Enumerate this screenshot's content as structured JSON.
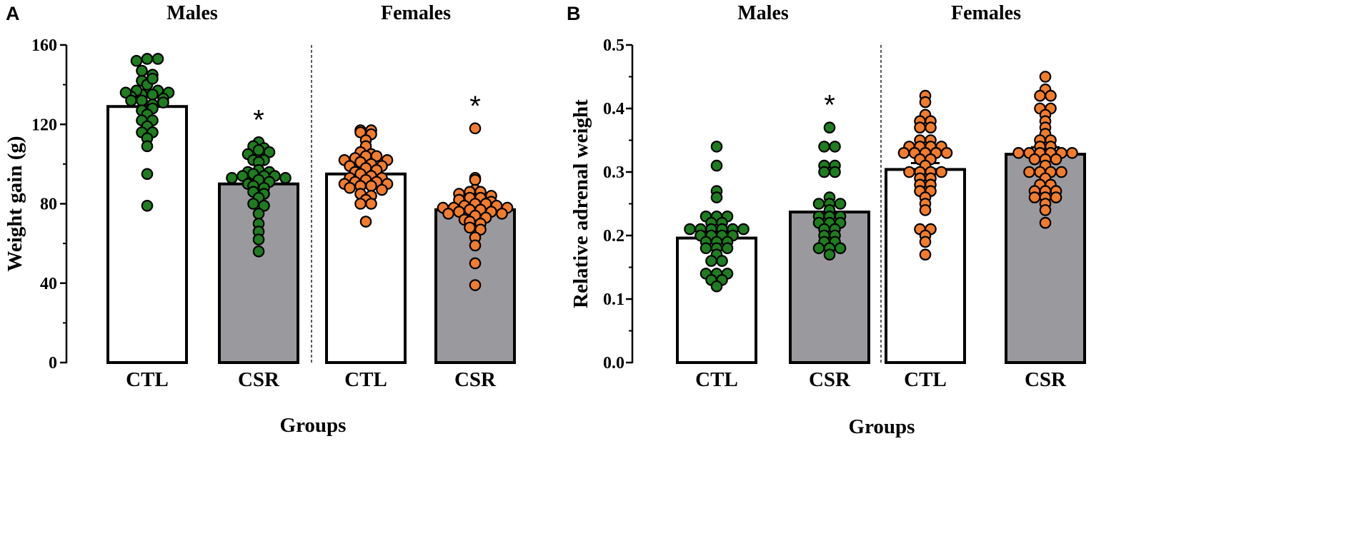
{
  "chart_data": [
    {
      "panel": "A",
      "type": "bar",
      "subtype": "bar with individual points (dot plot) and SEM error bars",
      "ylabel": "Weight gain (g)",
      "xlabel": "Groups",
      "ylim": [
        0,
        160
      ],
      "yticks": [
        0,
        40,
        80,
        120,
        160
      ],
      "ytick_labels": [
        "0",
        "40",
        "80",
        "120",
        "160"
      ],
      "groups": [
        {
          "label": "Males",
          "categories": [
            "CTL",
            "CSR"
          ]
        },
        {
          "label": "Females",
          "categories": [
            "CTL",
            "CSR"
          ]
        }
      ],
      "series": [
        {
          "name": "CTL",
          "sex": "Males",
          "bar_fill": "white",
          "point_color": "#1e7d1e",
          "mean": 129,
          "sem": 2.5,
          "points": [
            153,
            153,
            152,
            142,
            147,
            145,
            136,
            140,
            143,
            137,
            135,
            137,
            136,
            132,
            135,
            134,
            136,
            133,
            130,
            132,
            131,
            127,
            128,
            125,
            122,
            122,
            119,
            116,
            116,
            113,
            109,
            95,
            79
          ]
        },
        {
          "name": "CSR",
          "sex": "Males",
          "bar_fill": "gray",
          "point_color": "#1e7d1e",
          "mean": 90,
          "sem": 2.2,
          "significant": true,
          "sig_label": "*",
          "points": [
            111,
            109,
            108,
            107,
            106,
            105,
            102,
            102,
            101,
            97,
            96,
            96,
            95,
            94,
            94,
            94,
            93,
            93,
            92,
            91,
            90,
            89,
            88,
            86,
            85,
            83,
            80,
            79,
            75,
            70,
            66,
            62,
            56
          ]
        },
        {
          "name": "CTL",
          "sex": "Females",
          "bar_fill": "white",
          "point_color": "#f07c2c",
          "mean": 95,
          "sem": 1.8,
          "points": [
            117,
            117,
            116,
            115,
            112,
            109,
            106,
            105,
            104,
            104,
            103,
            102,
            102,
            101,
            100,
            99,
            99,
            98,
            97,
            96,
            95,
            94,
            93,
            93,
            92,
            91,
            91,
            90,
            90,
            89,
            89,
            88,
            87,
            85,
            84,
            82,
            80,
            80,
            71
          ]
        },
        {
          "name": "CSR",
          "sex": "Females",
          "bar_fill": "gray",
          "point_color": "#f07c2c",
          "mean": 77,
          "sem": 1.8,
          "significant": true,
          "sig_label": "*",
          "points": [
            118,
            93,
            92,
            87,
            86,
            86,
            85,
            84,
            83,
            83,
            82,
            81,
            80,
            80,
            79,
            79,
            78,
            78,
            78,
            77,
            77,
            76,
            76,
            75,
            75,
            74,
            73,
            72,
            71,
            70,
            68,
            67,
            63,
            59,
            50,
            39
          ]
        }
      ],
      "separator": "dashed vertical line between Males and Females"
    },
    {
      "panel": "B",
      "type": "bar",
      "subtype": "bar with individual points (dot plot) and SEM error bars",
      "ylabel": "Relative adrenal weight",
      "xlabel": "Groups",
      "ylim": [
        0.0,
        0.5
      ],
      "yticks": [
        0.0,
        0.1,
        0.2,
        0.3,
        0.4,
        0.5
      ],
      "ytick_labels": [
        "0.0",
        "0.1",
        "0.2",
        "0.3",
        "0.4",
        "0.5"
      ],
      "groups": [
        {
          "label": "Males",
          "categories": [
            "CTL",
            "CSR"
          ]
        },
        {
          "label": "Females",
          "categories": [
            "CTL",
            "CSR"
          ]
        }
      ],
      "series": [
        {
          "name": "CTL",
          "sex": "Males",
          "bar_fill": "white",
          "point_color": "#1e7d1e",
          "mean": 0.196,
          "sem": 0.009,
          "points": [
            0.34,
            0.31,
            0.27,
            0.26,
            0.23,
            0.23,
            0.23,
            0.22,
            0.22,
            0.21,
            0.21,
            0.21,
            0.21,
            0.21,
            0.21,
            0.2,
            0.2,
            0.2,
            0.2,
            0.19,
            0.19,
            0.19,
            0.18,
            0.18,
            0.18,
            0.17,
            0.16,
            0.16,
            0.14,
            0.14,
            0.14,
            0.13,
            0.13,
            0.12
          ]
        },
        {
          "name": "CSR",
          "sex": "Males",
          "bar_fill": "gray",
          "point_color": "#1e7d1e",
          "mean": 0.237,
          "sem": 0.011,
          "significant": true,
          "sig_label": "*",
          "points": [
            0.37,
            0.34,
            0.34,
            0.31,
            0.31,
            0.3,
            0.3,
            0.26,
            0.25,
            0.25,
            0.25,
            0.24,
            0.23,
            0.23,
            0.23,
            0.22,
            0.22,
            0.22,
            0.21,
            0.21,
            0.2,
            0.2,
            0.19,
            0.19,
            0.18,
            0.18,
            0.18,
            0.17
          ]
        },
        {
          "name": "CTL",
          "sex": "Females",
          "bar_fill": "white",
          "point_color": "#f07c2c",
          "mean": 0.304,
          "sem": 0.01,
          "points": [
            0.42,
            0.41,
            0.39,
            0.38,
            0.38,
            0.37,
            0.37,
            0.35,
            0.35,
            0.34,
            0.34,
            0.34,
            0.34,
            0.33,
            0.33,
            0.33,
            0.33,
            0.33,
            0.32,
            0.32,
            0.31,
            0.3,
            0.3,
            0.3,
            0.3,
            0.29,
            0.29,
            0.28,
            0.28,
            0.27,
            0.27,
            0.26,
            0.25,
            0.24,
            0.21,
            0.21,
            0.2,
            0.19,
            0.17
          ]
        },
        {
          "name": "CSR",
          "sex": "Females",
          "bar_fill": "gray",
          "point_color": "#f07c2c",
          "mean": 0.328,
          "sem": 0.011,
          "points": [
            0.45,
            0.43,
            0.42,
            0.42,
            0.4,
            0.4,
            0.39,
            0.38,
            0.37,
            0.36,
            0.35,
            0.35,
            0.34,
            0.34,
            0.33,
            0.33,
            0.33,
            0.33,
            0.33,
            0.33,
            0.32,
            0.32,
            0.32,
            0.31,
            0.3,
            0.3,
            0.3,
            0.3,
            0.29,
            0.28,
            0.28,
            0.27,
            0.27,
            0.27,
            0.26,
            0.26,
            0.26,
            0.25,
            0.24,
            0.22
          ]
        }
      ],
      "separator": "dashed vertical line between Males and Females"
    }
  ],
  "colors": {
    "male_points": "#1e7d1e",
    "female_points": "#f07c2c",
    "csr_bar": "#9a999e",
    "ctl_bar": "#ffffff",
    "axis": "#000000"
  }
}
